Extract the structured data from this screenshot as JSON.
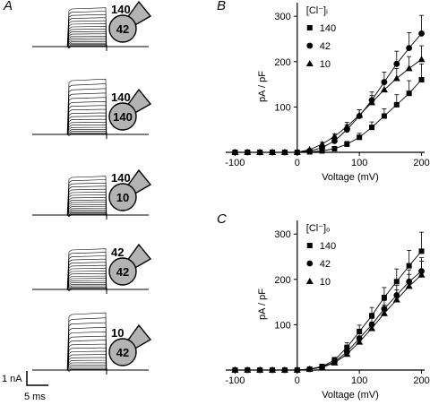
{
  "panels": {
    "A": {
      "letter": "A",
      "cells": [
        {
          "top": "140",
          "bottom": "42"
        },
        {
          "top": "140",
          "bottom": "140"
        },
        {
          "top": "140",
          "bottom": "10"
        },
        {
          "top": "42",
          "bottom": "42"
        },
        {
          "top": "10",
          "bottom": "42"
        }
      ],
      "scale_bar": {
        "current": "1 nA",
        "time": "5 ms"
      }
    },
    "B": {
      "letter": "B"
    },
    "C": {
      "letter": "C"
    }
  },
  "colors": {
    "cell_fill": "#b3b3b3",
    "trace": "#000000"
  },
  "chart_data": [
    {
      "type": "scatter",
      "panel": "B",
      "xlabel": "Voltage (mV)",
      "ylabel": "pA / pF",
      "xlim": [
        -115,
        205
      ],
      "ylim": [
        0,
        330
      ],
      "xticks": [
        -100,
        0,
        100,
        200
      ],
      "yticks": [
        100,
        200,
        300
      ],
      "legend_title": "[Cl⁻]ᵢ",
      "legend_position": "top-left",
      "x": [
        -100,
        -80,
        -60,
        -40,
        -20,
        0,
        20,
        40,
        60,
        80,
        100,
        120,
        140,
        160,
        180,
        200
      ],
      "series": [
        {
          "name": "140",
          "marker": "square",
          "values": [
            0,
            0,
            0,
            0,
            0,
            0,
            1,
            3,
            8,
            18,
            33,
            55,
            80,
            105,
            130,
            160
          ],
          "errors": [
            0,
            0,
            0,
            0,
            0,
            0,
            1,
            2,
            4,
            6,
            9,
            12,
            16,
            22,
            28,
            35
          ]
        },
        {
          "name": "42",
          "marker": "circle",
          "values": [
            0,
            0,
            0,
            0,
            0,
            0,
            3,
            10,
            25,
            50,
            80,
            115,
            155,
            195,
            230,
            262
          ],
          "errors": [
            0,
            0,
            0,
            0,
            0,
            0,
            2,
            4,
            7,
            10,
            14,
            18,
            22,
            28,
            34,
            40
          ]
        },
        {
          "name": "10",
          "marker": "triangle",
          "values": [
            0,
            0,
            0,
            0,
            0,
            0,
            6,
            18,
            35,
            57,
            82,
            110,
            138,
            163,
            185,
            205
          ],
          "errors": [
            0,
            0,
            0,
            0,
            0,
            0,
            2,
            4,
            6,
            9,
            12,
            15,
            18,
            22,
            26,
            30
          ]
        }
      ]
    },
    {
      "type": "scatter",
      "panel": "C",
      "xlabel": "Voltage (mV)",
      "ylabel": "pA / pF",
      "xlim": [
        -115,
        205
      ],
      "ylim": [
        0,
        330
      ],
      "xticks": [
        -100,
        0,
        100,
        200
      ],
      "yticks": [
        100,
        200,
        300
      ],
      "legend_title": "[Cl⁻]ₒ",
      "legend_position": "top-left",
      "x": [
        -100,
        -80,
        -60,
        -40,
        -20,
        0,
        20,
        40,
        60,
        80,
        100,
        120,
        140,
        160,
        180,
        200
      ],
      "series": [
        {
          "name": "140",
          "marker": "square",
          "values": [
            0,
            0,
            0,
            0,
            0,
            0,
            2,
            8,
            22,
            50,
            85,
            120,
            160,
            195,
            230,
            262
          ],
          "errors": [
            0,
            0,
            0,
            0,
            0,
            0,
            1,
            3,
            6,
            10,
            14,
            18,
            22,
            28,
            34,
            42
          ]
        },
        {
          "name": "42",
          "marker": "circle",
          "values": [
            0,
            0,
            0,
            0,
            0,
            0,
            2,
            7,
            18,
            40,
            70,
            100,
            135,
            165,
            195,
            218
          ],
          "errors": [
            0,
            0,
            0,
            0,
            0,
            0,
            1,
            3,
            5,
            8,
            11,
            14,
            18,
            22,
            26,
            30
          ]
        },
        {
          "name": "10",
          "marker": "triangle",
          "values": [
            0,
            0,
            0,
            0,
            0,
            0,
            2,
            6,
            16,
            35,
            62,
            92,
            125,
            155,
            185,
            210
          ],
          "errors": [
            0,
            0,
            0,
            0,
            0,
            0,
            1,
            3,
            5,
            8,
            11,
            14,
            18,
            22,
            26,
            30
          ]
        }
      ]
    }
  ]
}
